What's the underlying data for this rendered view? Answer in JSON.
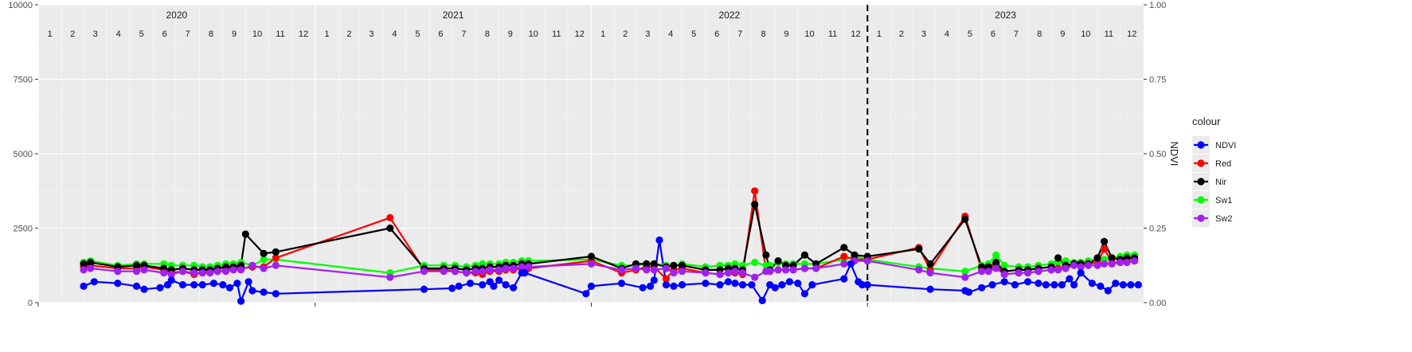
{
  "chart_data": {
    "type": "line",
    "title": "",
    "xlabel": "",
    "ylabel_left": "",
    "ylabel_right": "NDVI",
    "x_range": [
      "2020-01-01",
      "2024-01-01"
    ],
    "ylim_left": [
      0,
      10000
    ],
    "ylim_right": [
      0,
      1
    ],
    "y_ticks_left": [
      "0",
      "2500",
      "5000",
      "7500",
      "10000"
    ],
    "y_tick_values_left": [
      0,
      2500,
      5000,
      7500,
      10000
    ],
    "y_ticks_right": [
      "0.00",
      "0.25",
      "0.50",
      "0.75",
      "1.00"
    ],
    "y_tick_values_right": [
      0,
      0.25,
      0.5,
      0.75,
      1.0
    ],
    "years": [
      "2020",
      "2021",
      "2022",
      "2023"
    ],
    "month_labels": [
      "1",
      "2",
      "3",
      "4",
      "5",
      "6",
      "7",
      "8",
      "9",
      "10",
      "11",
      "12"
    ],
    "vline_date": "2023-01-01",
    "grid": true,
    "legend": {
      "title": "colour",
      "position": "right"
    },
    "colors": {
      "NDVI": "#0000ff",
      "Red": "#ff0000",
      "Nir": "#000000",
      "Sw1": "#00ff00",
      "Sw2": "#a020f0"
    },
    "series": [
      {
        "name": "Sw1",
        "dates": [
          "2020-03-01",
          "2020-03-10",
          "2020-04-15",
          "2020-05-10",
          "2020-05-20",
          "2020-06-15",
          "2020-06-25",
          "2020-07-10",
          "2020-07-25",
          "2020-08-05",
          "2020-08-15",
          "2020-08-25",
          "2020-09-05",
          "2020-09-15",
          "2020-09-25",
          "2020-10-10",
          "2020-10-25",
          "2020-11-10",
          "2021-04-10",
          "2021-05-25",
          "2021-06-20",
          "2021-07-05",
          "2021-07-20",
          "2021-08-01",
          "2021-08-10",
          "2021-08-20",
          "2021-09-01",
          "2021-09-10",
          "2021-09-20",
          "2021-10-01",
          "2021-10-10",
          "2022-01-01",
          "2022-02-10",
          "2022-03-01",
          "2022-03-15",
          "2022-03-25",
          "2022-04-10",
          "2022-04-20",
          "2022-05-01",
          "2022-06-01",
          "2022-06-20",
          "2022-07-01",
          "2022-07-10",
          "2022-07-20",
          "2022-08-05",
          "2022-08-20",
          "2022-08-25",
          "2022-09-05",
          "2022-09-15",
          "2022-09-25",
          "2022-10-10",
          "2022-10-25",
          "2022-12-01",
          "2022-12-15",
          "2023-01-01",
          "2023-03-10",
          "2023-03-25",
          "2023-05-10",
          "2023-06-01",
          "2023-06-10",
          "2023-06-20",
          "2023-07-01",
          "2023-07-20",
          "2023-08-01",
          "2023-08-15",
          "2023-09-01",
          "2023-09-10",
          "2023-09-20",
          "2023-10-01",
          "2023-10-10",
          "2023-10-20",
          "2023-11-01",
          "2023-11-10",
          "2023-11-20",
          "2023-12-01",
          "2023-12-10",
          "2023-12-20"
        ],
        "values": [
          1350,
          1400,
          1250,
          1300,
          1300,
          1300,
          1250,
          1250,
          1250,
          1200,
          1200,
          1250,
          1300,
          1300,
          1350,
          1250,
          1450,
          1450,
          1000,
          1250,
          1250,
          1250,
          1200,
          1250,
          1300,
          1300,
          1300,
          1350,
          1350,
          1400,
          1400,
          1450,
          1250,
          1250,
          1300,
          1300,
          1250,
          1250,
          1300,
          1200,
          1250,
          1250,
          1300,
          1250,
          1350,
          1250,
          1250,
          1350,
          1300,
          1300,
          1300,
          1300,
          1450,
          1550,
          1450,
          1200,
          1150,
          1050,
          1250,
          1300,
          1600,
          1250,
          1200,
          1200,
          1250,
          1300,
          1350,
          1400,
          1350,
          1350,
          1400,
          1450,
          1450,
          1500,
          1550,
          1600,
          1600
        ]
      },
      {
        "name": "Red",
        "dates": [
          "2020-03-01",
          "2020-03-10",
          "2020-04-15",
          "2020-05-10",
          "2020-05-20",
          "2020-06-15",
          "2020-06-25",
          "2020-07-10",
          "2020-07-25",
          "2020-08-05",
          "2020-08-15",
          "2020-08-25",
          "2020-09-05",
          "2020-09-15",
          "2020-09-25",
          "2020-10-10",
          "2020-10-25",
          "2020-11-10",
          "2021-04-10",
          "2021-05-25",
          "2021-06-20",
          "2021-07-05",
          "2021-07-20",
          "2021-08-01",
          "2021-08-10",
          "2021-08-20",
          "2021-09-01",
          "2021-09-10",
          "2021-09-20",
          "2021-10-01",
          "2021-10-10",
          "2022-01-01",
          "2022-02-10",
          "2022-03-01",
          "2022-03-15",
          "2022-03-25",
          "2022-04-10",
          "2022-04-20",
          "2022-05-01",
          "2022-06-01",
          "2022-06-20",
          "2022-07-01",
          "2022-07-10",
          "2022-07-20",
          "2022-08-05",
          "2022-08-20",
          "2022-08-25",
          "2022-09-05",
          "2022-09-15",
          "2022-09-25",
          "2022-10-10",
          "2022-10-25",
          "2022-12-01",
          "2022-12-15",
          "2023-01-01",
          "2023-03-10",
          "2023-03-25",
          "2023-05-10",
          "2023-06-01",
          "2023-06-10",
          "2023-06-20",
          "2023-07-01",
          "2023-07-20",
          "2023-08-01",
          "2023-08-15",
          "2023-09-01",
          "2023-09-10",
          "2023-09-20",
          "2023-10-01",
          "2023-10-10",
          "2023-10-20",
          "2023-11-01",
          "2023-11-10",
          "2023-11-20",
          "2023-12-01",
          "2023-12-10",
          "2023-12-20"
        ],
        "values": [
          1200,
          1250,
          1150,
          1150,
          1200,
          1100,
          1000,
          1050,
          950,
          1000,
          1050,
          1050,
          1100,
          1150,
          1150,
          1200,
          1200,
          1500,
          2850,
          1100,
          1100,
          1050,
          1000,
          1000,
          950,
          1050,
          1050,
          1100,
          1100,
          1150,
          1150,
          1400,
          1000,
          1100,
          1200,
          1200,
          800,
          1100,
          1150,
          1000,
          950,
          1000,
          1000,
          950,
          3750,
          1050,
          1050,
          1100,
          1100,
          1100,
          1150,
          1150,
          1550,
          1450,
          1450,
          1850,
          1100,
          2900,
          1100,
          1100,
          1300,
          950,
          1000,
          1000,
          1050,
          1100,
          1150,
          1200,
          1300,
          1300,
          1300,
          1350,
          1800,
          1350,
          1350,
          1400,
          1400
        ]
      },
      {
        "name": "Nir",
        "dates": [
          "2020-03-01",
          "2020-03-10",
          "2020-04-15",
          "2020-05-10",
          "2020-05-20",
          "2020-06-15",
          "2020-06-25",
          "2020-07-10",
          "2020-07-25",
          "2020-08-05",
          "2020-08-15",
          "2020-08-25",
          "2020-09-05",
          "2020-09-15",
          "2020-09-25",
          "2020-10-01",
          "2020-10-25",
          "2020-11-10",
          "2021-04-10",
          "2021-05-25",
          "2021-06-20",
          "2021-07-05",
          "2021-07-20",
          "2021-08-01",
          "2021-08-10",
          "2021-08-20",
          "2021-09-01",
          "2021-09-10",
          "2021-09-20",
          "2021-10-01",
          "2021-10-10",
          "2022-01-01",
          "2022-02-10",
          "2022-03-01",
          "2022-03-15",
          "2022-03-25",
          "2022-04-10",
          "2022-04-20",
          "2022-05-01",
          "2022-06-01",
          "2022-06-20",
          "2022-07-01",
          "2022-07-10",
          "2022-07-20",
          "2022-08-05",
          "2022-08-20",
          "2022-08-25",
          "2022-09-05",
          "2022-09-15",
          "2022-09-25",
          "2022-10-10",
          "2022-10-25",
          "2022-12-01",
          "2022-12-15",
          "2023-01-01",
          "2023-03-10",
          "2023-03-25",
          "2023-05-10",
          "2023-06-01",
          "2023-06-10",
          "2023-06-20",
          "2023-07-01",
          "2023-07-20",
          "2023-08-01",
          "2023-08-15",
          "2023-09-01",
          "2023-09-10",
          "2023-09-20",
          "2023-10-01",
          "2023-10-10",
          "2023-10-20",
          "2023-11-01",
          "2023-11-10",
          "2023-11-20",
          "2023-12-01",
          "2023-12-10",
          "2023-12-20"
        ],
        "values": [
          1300,
          1350,
          1200,
          1250,
          1250,
          1150,
          1100,
          1150,
          1100,
          1100,
          1100,
          1150,
          1200,
          1200,
          1250,
          2300,
          1650,
          1700,
          2500,
          1150,
          1150,
          1150,
          1100,
          1150,
          1150,
          1200,
          1200,
          1250,
          1250,
          1300,
          1300,
          1550,
          1150,
          1300,
          1300,
          1300,
          1200,
          1250,
          1250,
          1100,
          1100,
          1150,
          1150,
          1100,
          3300,
          1600,
          1100,
          1400,
          1250,
          1250,
          1600,
          1300,
          1850,
          1600,
          1550,
          1800,
          1300,
          2800,
          1200,
          1200,
          1350,
          1050,
          1100,
          1100,
          1150,
          1200,
          1500,
          1250,
          1300,
          1300,
          1300,
          1500,
          2050,
          1500,
          1450,
          1500,
          1500
        ]
      },
      {
        "name": "Sw2",
        "dates": [
          "2020-03-01",
          "2020-03-10",
          "2020-04-15",
          "2020-05-10",
          "2020-05-20",
          "2020-06-15",
          "2020-06-25",
          "2020-07-10",
          "2020-07-25",
          "2020-08-05",
          "2020-08-15",
          "2020-08-25",
          "2020-09-05",
          "2020-09-15",
          "2020-09-25",
          "2020-10-10",
          "2020-10-25",
          "2020-11-10",
          "2021-04-10",
          "2021-05-25",
          "2021-06-20",
          "2021-07-05",
          "2021-07-20",
          "2021-08-01",
          "2021-08-10",
          "2021-08-20",
          "2021-09-01",
          "2021-09-10",
          "2021-09-20",
          "2021-10-01",
          "2021-10-10",
          "2022-01-01",
          "2022-02-10",
          "2022-03-01",
          "2022-03-15",
          "2022-03-25",
          "2022-04-10",
          "2022-04-20",
          "2022-05-01",
          "2022-06-01",
          "2022-06-20",
          "2022-07-01",
          "2022-07-10",
          "2022-07-20",
          "2022-08-05",
          "2022-08-20",
          "2022-08-25",
          "2022-09-05",
          "2022-09-15",
          "2022-09-25",
          "2022-10-10",
          "2022-10-25",
          "2022-12-01",
          "2022-12-15",
          "2023-01-01",
          "2023-03-10",
          "2023-03-25",
          "2023-05-10",
          "2023-06-01",
          "2023-06-10",
          "2023-06-20",
          "2023-07-01",
          "2023-07-20",
          "2023-08-01",
          "2023-08-15",
          "2023-09-01",
          "2023-09-10",
          "2023-09-20",
          "2023-10-01",
          "2023-10-10",
          "2023-10-20",
          "2023-11-01",
          "2023-11-10",
          "2023-11-20",
          "2023-12-01",
          "2023-12-10",
          "2023-12-20"
        ],
        "values": [
          1100,
          1150,
          1050,
          1050,
          1100,
          1000,
          950,
          1050,
          1000,
          1000,
          1000,
          1050,
          1050,
          1100,
          1100,
          1250,
          1150,
          1250,
          850,
          1050,
          1050,
          1050,
          1000,
          1050,
          1050,
          1100,
          1100,
          1150,
          1150,
          1200,
          1200,
          1300,
          1100,
          1150,
          1100,
          1100,
          1150,
          1000,
          1050,
          1000,
          950,
          1000,
          1050,
          1000,
          850,
          1050,
          1050,
          1100,
          1100,
          1100,
          1150,
          1150,
          1300,
          1400,
          1400,
          1100,
          1000,
          850,
          1050,
          1050,
          1150,
          950,
          1000,
          1000,
          1050,
          1100,
          1100,
          1150,
          1250,
          1200,
          1250,
          1250,
          1300,
          1300,
          1350,
          1350,
          1400
        ]
      },
      {
        "name": "NDVI",
        "axis": "right",
        "dates": [
          "2020-03-01",
          "2020-03-15",
          "2020-04-15",
          "2020-05-10",
          "2020-05-20",
          "2020-06-10",
          "2020-06-20",
          "2020-06-25",
          "2020-07-10",
          "2020-07-25",
          "2020-08-05",
          "2020-08-20",
          "2020-09-01",
          "2020-09-10",
          "2020-09-20",
          "2020-09-25",
          "2020-10-05",
          "2020-10-10",
          "2020-10-25",
          "2020-11-10",
          "2021-05-25",
          "2021-07-01",
          "2021-07-10",
          "2021-07-25",
          "2021-08-10",
          "2021-08-20",
          "2021-08-25",
          "2021-09-01",
          "2021-09-10",
          "2021-09-20",
          "2021-10-01",
          "2021-10-05",
          "2021-12-25",
          "2022-01-01",
          "2022-02-10",
          "2022-03-10",
          "2022-03-20",
          "2022-03-25",
          "2022-04-01",
          "2022-04-10",
          "2022-04-20",
          "2022-05-01",
          "2022-06-01",
          "2022-06-20",
          "2022-07-01",
          "2022-07-10",
          "2022-07-20",
          "2022-08-01",
          "2022-08-15",
          "2022-08-25",
          "2022-09-01",
          "2022-09-10",
          "2022-09-20",
          "2022-10-01",
          "2022-10-10",
          "2022-10-20",
          "2022-12-01",
          "2022-12-10",
          "2022-12-20",
          "2022-12-25",
          "2023-01-01",
          "2023-03-25",
          "2023-05-10",
          "2023-05-15",
          "2023-06-01",
          "2023-06-15",
          "2023-07-01",
          "2023-07-15",
          "2023-08-01",
          "2023-08-15",
          "2023-08-25",
          "2023-09-05",
          "2023-09-15",
          "2023-09-25",
          "2023-10-01",
          "2023-10-10",
          "2023-10-25",
          "2023-11-05",
          "2023-11-15",
          "2023-11-25",
          "2023-12-05",
          "2023-12-15",
          "2023-12-25"
        ],
        "values": [
          0.055,
          0.07,
          0.065,
          0.055,
          0.045,
          0.05,
          0.06,
          0.075,
          0.06,
          0.06,
          0.06,
          0.065,
          0.06,
          0.05,
          0.065,
          0.005,
          0.07,
          0.04,
          0.035,
          0.03,
          0.045,
          0.048,
          0.055,
          0.065,
          0.06,
          0.07,
          0.055,
          0.075,
          0.06,
          0.05,
          0.1,
          0.1,
          0.03,
          0.055,
          0.065,
          0.05,
          0.055,
          0.075,
          0.21,
          0.06,
          0.055,
          0.06,
          0.065,
          0.06,
          0.07,
          0.065,
          0.06,
          0.06,
          0.007,
          0.06,
          0.05,
          0.06,
          0.07,
          0.065,
          0.03,
          0.06,
          0.08,
          0.13,
          0.07,
          0.06,
          0.06,
          0.045,
          0.04,
          0.035,
          0.05,
          0.06,
          0.07,
          0.06,
          0.07,
          0.065,
          0.06,
          0.06,
          0.06,
          0.08,
          0.06,
          0.1,
          0.065,
          0.055,
          0.04,
          0.065,
          0.06,
          0.06,
          0.06
        ]
      }
    ]
  }
}
